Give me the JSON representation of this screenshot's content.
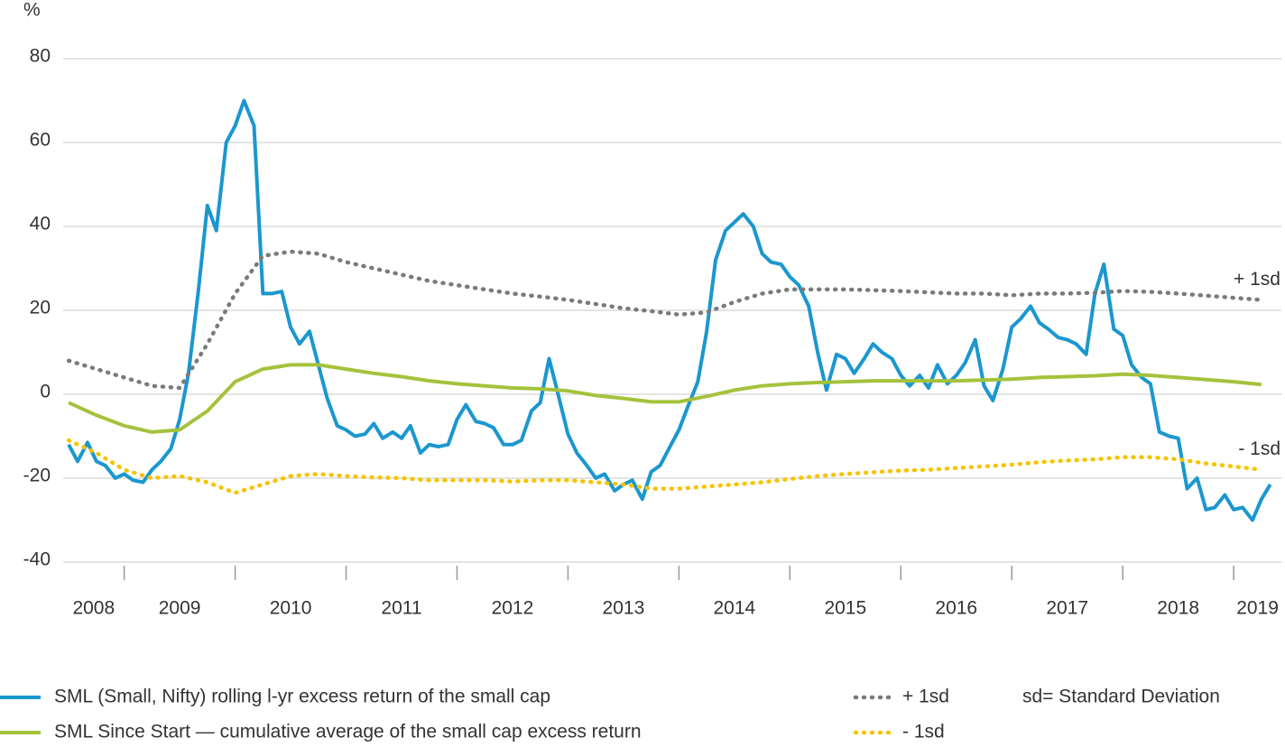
{
  "chart_data": {
    "type": "line",
    "y_unit": "%",
    "note": "sd= Standard Deviation",
    "categories": [
      "2008",
      "2009",
      "2010",
      "2011",
      "2012",
      "2013",
      "2014",
      "2015",
      "2016",
      "2017",
      "2018",
      "2019"
    ],
    "xlim": [
      2008.45,
      2019.43
    ],
    "ylim": [
      -40,
      80
    ],
    "yticks": [
      -40,
      -20,
      0,
      20,
      40,
      60,
      80
    ],
    "grid": true,
    "series": [
      {
        "name": "SML (Small, Nifty) rolling l-yr excess return of the small cap",
        "color": "#1b97cf",
        "style": "solid",
        "x": [
          2008.5,
          2008.58,
          2008.67,
          2008.75,
          2008.83,
          2008.92,
          2009,
          2009.08,
          2009.17,
          2009.25,
          2009.33,
          2009.42,
          2009.5,
          2009.58,
          2009.67,
          2009.75,
          2009.83,
          2009.92,
          2010,
          2010.08,
          2010.17,
          2010.25,
          2010.33,
          2010.42,
          2010.5,
          2010.58,
          2010.67,
          2010.75,
          2010.83,
          2010.92,
          2011,
          2011.08,
          2011.17,
          2011.25,
          2011.33,
          2011.42,
          2011.5,
          2011.58,
          2011.67,
          2011.75,
          2011.83,
          2011.92,
          2012,
          2012.08,
          2012.17,
          2012.25,
          2012.33,
          2012.42,
          2012.5,
          2012.58,
          2012.67,
          2012.75,
          2012.83,
          2012.92,
          2013,
          2013.08,
          2013.17,
          2013.25,
          2013.33,
          2013.42,
          2013.5,
          2013.58,
          2013.67,
          2013.75,
          2013.83,
          2013.92,
          2014,
          2014.08,
          2014.17,
          2014.25,
          2014.33,
          2014.42,
          2014.5,
          2014.58,
          2014.67,
          2014.75,
          2014.83,
          2014.92,
          2015,
          2015.08,
          2015.17,
          2015.25,
          2015.33,
          2015.42,
          2015.5,
          2015.58,
          2015.67,
          2015.75,
          2015.83,
          2015.92,
          2016,
          2016.08,
          2016.17,
          2016.25,
          2016.33,
          2016.42,
          2016.5,
          2016.58,
          2016.67,
          2016.75,
          2016.83,
          2016.92,
          2017,
          2017.08,
          2017.17,
          2017.25,
          2017.33,
          2017.42,
          2017.5,
          2017.58,
          2017.67,
          2017.75,
          2017.83,
          2017.92,
          2018,
          2018.08,
          2018.17,
          2018.25,
          2018.33,
          2018.42,
          2018.5,
          2018.58,
          2018.67,
          2018.75,
          2018.83,
          2018.92,
          2019,
          2019.08,
          2019.17,
          2019.25,
          2019.33
        ],
        "values": [
          -12,
          -16,
          -11.5,
          -16,
          -17,
          -20,
          -19,
          -20.5,
          -21,
          -18,
          -16,
          -13,
          -6,
          5,
          25,
          45,
          39,
          60,
          64,
          70,
          64,
          24,
          24,
          24.5,
          16,
          12,
          15,
          7,
          -1,
          -7.5,
          -8.5,
          -10,
          -9.5,
          -7,
          -10.5,
          -9,
          -10.5,
          -7.5,
          -14,
          -12,
          -12.5,
          -12,
          -6,
          -2.5,
          -6.5,
          -7,
          -8,
          -12,
          -12,
          -11,
          -4,
          -2,
          8.5,
          -1,
          -9.5,
          -14,
          -17,
          -20,
          -19,
          -23,
          -21.5,
          -20.5,
          -25,
          -18.5,
          -17,
          -12.5,
          -8.5,
          -3,
          3,
          15,
          32,
          39,
          41,
          43,
          40,
          33.5,
          31.5,
          31,
          28,
          26,
          21,
          10,
          1,
          9.5,
          8.5,
          5,
          8.5,
          12,
          10,
          8.5,
          4.5,
          2,
          4.5,
          1.5,
          7,
          2.5,
          4.5,
          7.5,
          13,
          2,
          -1.5,
          6,
          16,
          18,
          21,
          17,
          15.5,
          13.5,
          13,
          12,
          9.5,
          24,
          31,
          15.5,
          14,
          7,
          4,
          2.5,
          -9,
          -10,
          -10.5,
          -22.5,
          -20,
          -27.5,
          -27,
          -24,
          -27.5,
          -27,
          -30,
          -25,
          -21.5
        ]
      },
      {
        "name": "SML Since Start — cumulative average of the small cap excess return",
        "color": "#a5c23c",
        "style": "solid",
        "x": [
          2008.5,
          2008.75,
          2009,
          2009.25,
          2009.5,
          2009.75,
          2010,
          2010.25,
          2010.5,
          2010.75,
          2011,
          2011.25,
          2011.5,
          2011.75,
          2012,
          2012.25,
          2012.5,
          2012.75,
          2013,
          2013.25,
          2013.5,
          2013.75,
          2014,
          2014.25,
          2014.5,
          2014.75,
          2015,
          2015.25,
          2015.5,
          2015.75,
          2016,
          2016.25,
          2016.5,
          2016.75,
          2017,
          2017.25,
          2017.5,
          2017.75,
          2018,
          2018.25,
          2018.5,
          2018.75,
          2019,
          2019.25
        ],
        "values": [
          -2,
          -5,
          -7.5,
          -9,
          -8.5,
          -4,
          3,
          6,
          7,
          7,
          6,
          5,
          4.2,
          3.2,
          2.5,
          2,
          1.5,
          1.3,
          0.8,
          -0.3,
          -1,
          -1.8,
          -1.8,
          -0.5,
          1,
          2,
          2.5,
          2.8,
          3,
          3.2,
          3.2,
          3.2,
          3.2,
          3.4,
          3.6,
          4,
          4.2,
          4.4,
          4.8,
          4.5,
          4,
          3.5,
          3,
          2.3
        ]
      },
      {
        "name": "+ 1sd",
        "color": "#7a7a7a",
        "style": "dotted",
        "end_label": true,
        "x": [
          2008.5,
          2008.75,
          2009,
          2009.25,
          2009.5,
          2009.75,
          2010,
          2010.25,
          2010.5,
          2010.75,
          2011,
          2011.25,
          2011.5,
          2011.75,
          2012,
          2012.25,
          2012.5,
          2012.75,
          2013,
          2013.25,
          2013.5,
          2013.75,
          2014,
          2014.25,
          2014.5,
          2014.75,
          2015,
          2015.25,
          2015.5,
          2015.75,
          2016,
          2016.25,
          2016.5,
          2016.75,
          2017,
          2017.25,
          2017.5,
          2017.75,
          2018,
          2018.25,
          2018.5,
          2018.75,
          2019,
          2019.25
        ],
        "values": [
          8,
          6,
          4,
          2,
          1.5,
          12,
          24,
          33,
          34,
          33.5,
          31.5,
          30,
          28.5,
          27,
          26,
          25,
          24,
          23.3,
          22.5,
          21.5,
          20.5,
          19.8,
          19,
          19.5,
          22,
          24,
          25,
          25,
          25,
          24.8,
          24.6,
          24.3,
          24,
          24,
          23.6,
          24,
          24,
          24.2,
          24.6,
          24.4,
          24,
          23.5,
          23,
          22.5
        ]
      },
      {
        "name": "- 1sd",
        "color": "#f5c400",
        "style": "dotted",
        "end_label": true,
        "x": [
          2008.5,
          2008.75,
          2009,
          2009.25,
          2009.5,
          2009.75,
          2010,
          2010.25,
          2010.5,
          2010.75,
          2011,
          2011.25,
          2011.5,
          2011.75,
          2012,
          2012.25,
          2012.5,
          2012.75,
          2013,
          2013.25,
          2013.5,
          2013.75,
          2014,
          2014.25,
          2014.5,
          2014.75,
          2015,
          2015.25,
          2015.5,
          2015.75,
          2016,
          2016.25,
          2016.5,
          2016.75,
          2017,
          2017.25,
          2017.5,
          2017.75,
          2018,
          2018.25,
          2018.5,
          2018.75,
          2019,
          2019.25
        ],
        "values": [
          -11,
          -14,
          -18,
          -20,
          -19.5,
          -21,
          -23.5,
          -21.5,
          -19.5,
          -19,
          -19.5,
          -19.8,
          -20,
          -20.5,
          -20.5,
          -20.5,
          -20.8,
          -20.5,
          -20.5,
          -21,
          -21.5,
          -22.5,
          -22.5,
          -22,
          -21.5,
          -21,
          -20.2,
          -19.5,
          -19,
          -18.6,
          -18.2,
          -18,
          -17.6,
          -17.2,
          -16.8,
          -16.2,
          -15.8,
          -15.5,
          -15,
          -15,
          -15.5,
          -16.5,
          -17.2,
          -18
        ]
      }
    ]
  }
}
